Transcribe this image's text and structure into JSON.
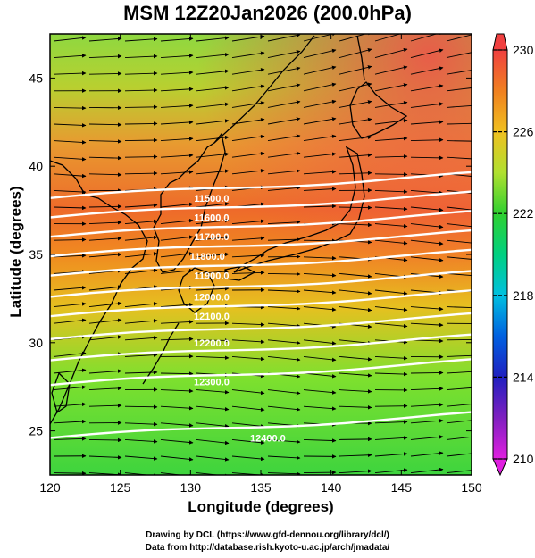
{
  "title": "MSM 12Z20Jan2026 (200.0hPa)",
  "chart_data": {
    "type": "map",
    "xlabel": "Longitude (degrees)",
    "ylabel": "Latitude  (degrees)",
    "xlim": [
      120,
      150
    ],
    "ylim": [
      22.5,
      47.5
    ],
    "xticks": [
      "120",
      "125",
      "130",
      "135",
      "140",
      "145",
      "150"
    ],
    "yticks": [
      "25",
      "30",
      "35",
      "40",
      "45"
    ],
    "colorbar": {
      "min": 210,
      "max": 230,
      "ticks": [
        "230",
        "226",
        "222",
        "218",
        "214",
        "210"
      ]
    },
    "contour_labels": [
      {
        "text": "11500.0",
        "lon": 131.5,
        "lat": 38.2
      },
      {
        "text": "11600.0",
        "lon": 131.5,
        "lat": 37.1
      },
      {
        "text": "11700.0",
        "lon": 131.5,
        "lat": 36.0
      },
      {
        "text": "11800.0",
        "lon": 131.2,
        "lat": 34.9
      },
      {
        "text": "11900.0",
        "lon": 131.5,
        "lat": 33.8
      },
      {
        "text": "12000.0",
        "lon": 131.5,
        "lat": 32.6
      },
      {
        "text": "12100.0",
        "lon": 131.5,
        "lat": 31.5
      },
      {
        "text": "12200.0",
        "lon": 131.5,
        "lat": 30.0
      },
      {
        "text": "12300.0",
        "lon": 131.5,
        "lat": 27.8
      },
      {
        "text": "12400.0",
        "lon": 135.5,
        "lat": 24.6
      }
    ]
  },
  "credits": {
    "line1": "Drawing by DCL (https://www.gfd-dennou.org/library/dcl/)",
    "line2": "Data from http://database.rish.kyoto-u.ac.jp/arch/jmadata/"
  }
}
